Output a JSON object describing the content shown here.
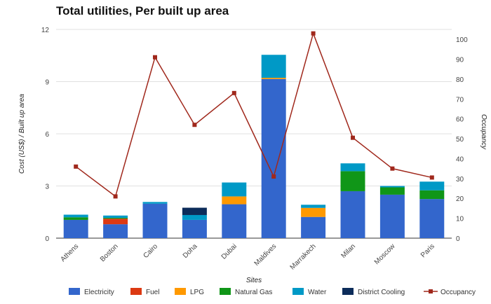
{
  "chart_data": {
    "type": "bar",
    "title": "Total utilities, Per built up area",
    "xlabel": "Sites",
    "ylabel": "Cost (US$) / Built up area",
    "y2label": "Occupancy",
    "categories": [
      "Athens",
      "Boston",
      "Cairo",
      "Doha",
      "Dubai",
      "Maldives",
      "Marrakech",
      "Milan",
      "Moscow",
      "Paris"
    ],
    "ylim": [
      0,
      12
    ],
    "yticks": [
      0,
      3,
      6,
      9,
      12
    ],
    "y2lim": [
      0,
      105
    ],
    "y2ticks": [
      0,
      10,
      20,
      30,
      40,
      50,
      60,
      70,
      80,
      90,
      100
    ],
    "grid": true,
    "stacked": true,
    "legend_position": "bottom",
    "series": [
      {
        "name": "Electricity",
        "color": "#3366cc",
        "values": [
          1.05,
          0.8,
          1.98,
          1.05,
          1.95,
          9.15,
          1.22,
          2.7,
          2.5,
          2.25
        ]
      },
      {
        "name": "Fuel",
        "color": "#dc3912",
        "values": [
          0,
          0.32,
          0,
          0,
          0,
          0,
          0,
          0,
          0,
          0
        ]
      },
      {
        "name": "LPG",
        "color": "#ff9900",
        "values": [
          0,
          0,
          0,
          0,
          0.45,
          0.07,
          0.52,
          0,
          0,
          0
        ]
      },
      {
        "name": "Natural Gas",
        "color": "#109618",
        "values": [
          0.15,
          0.05,
          0,
          0,
          0,
          0,
          0,
          1.15,
          0.42,
          0.5
        ]
      },
      {
        "name": "Water",
        "color": "#0099c6",
        "values": [
          0.15,
          0.13,
          0.1,
          0.28,
          0.8,
          1.32,
          0.18,
          0.45,
          0.08,
          0.5
        ]
      },
      {
        "name": "District Cooling",
        "color": "#0c2c5a",
        "values": [
          0,
          0,
          0,
          0.42,
          0,
          0,
          0,
          0,
          0,
          0
        ]
      }
    ],
    "line_series": {
      "name": "Occupancy",
      "color": "#a0281c",
      "axis": "right",
      "values": [
        36,
        21,
        91,
        57,
        73,
        31,
        103,
        50.5,
        35,
        30.5
      ]
    }
  }
}
